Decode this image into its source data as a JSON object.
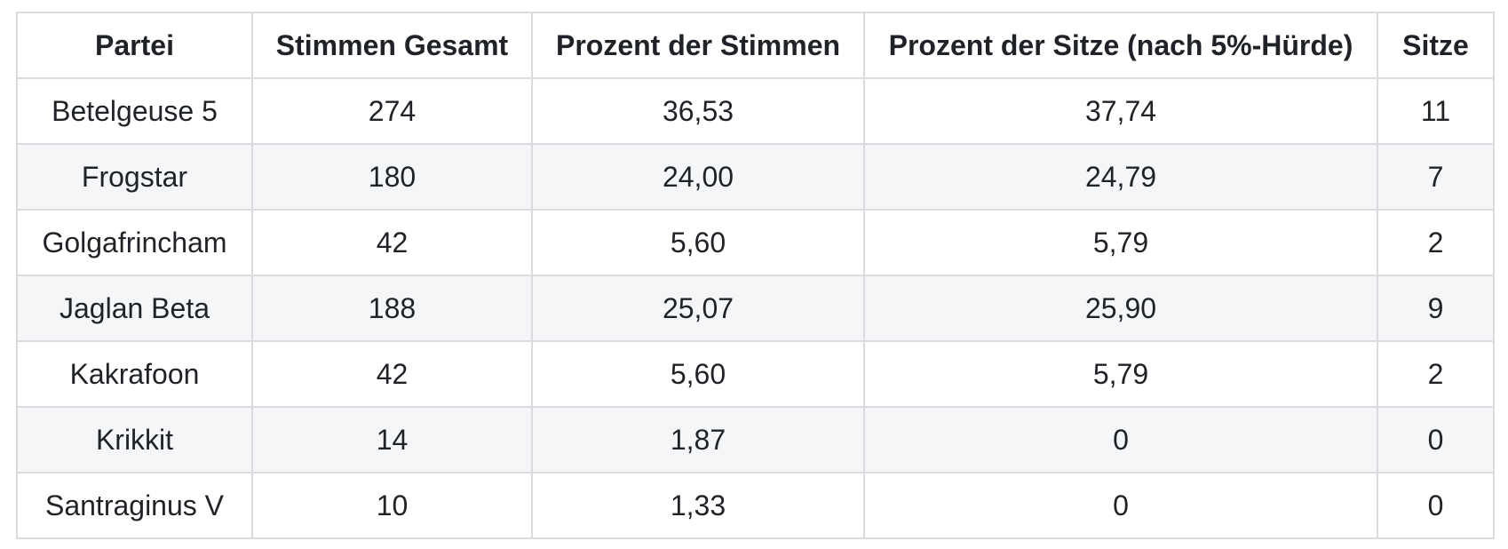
{
  "table": {
    "columns": [
      {
        "label": "Partei"
      },
      {
        "label": "Stimmen Gesamt"
      },
      {
        "label": "Prozent der Stimmen"
      },
      {
        "label": "Prozent der Sitze (nach 5%-Hürde)"
      },
      {
        "label": "Sitze"
      }
    ],
    "rows": [
      [
        "Betelgeuse 5",
        "274",
        "36,53",
        "37,74",
        "11"
      ],
      [
        "Frogstar",
        "180",
        "24,00",
        "24,79",
        "7"
      ],
      [
        "Golgafrincham",
        "42",
        "5,60",
        "5,79",
        "2"
      ],
      [
        "Jaglan Beta",
        "188",
        "25,07",
        "25,90",
        "9"
      ],
      [
        "Kakrafoon",
        "42",
        "5,60",
        "5,79",
        "2"
      ],
      [
        "Krikkit",
        "14",
        "1,87",
        "0",
        "0"
      ],
      [
        "Santraginus V",
        "10",
        "1,33",
        "0",
        "0"
      ]
    ]
  },
  "colors": {
    "background": "#ffffff",
    "stripe": "#f5f6f8",
    "border": "#d9dbde",
    "text": "#1f2328"
  }
}
